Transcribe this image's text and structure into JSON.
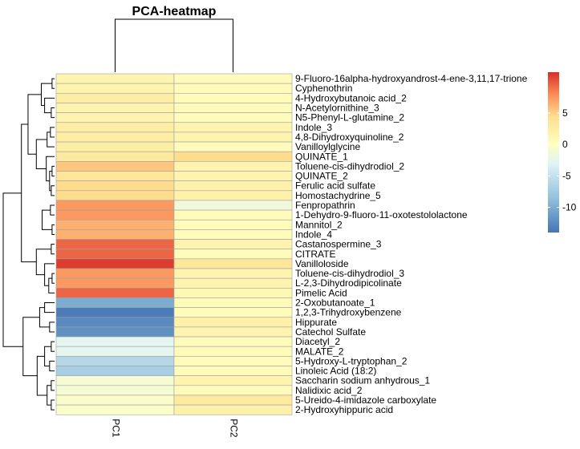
{
  "chart_data": {
    "type": "heatmap",
    "title": "PCA-heatmap",
    "columns": [
      "PC1",
      "PC2"
    ],
    "rows": [
      "9-Fluoro-16alpha-hydroxyandrost-4-ene-3,11,17-trione",
      "Cyphenothrin",
      "4-Hydroxybutanoic acid_2",
      "N-Acetylornithine_3",
      "N5-Phenyl-L-glutamine_2",
      "Indole_3",
      "4,8-Dihydroxyquinoline_2",
      "Vanilloylglycine",
      "QUINATE_1",
      "Toluene-cis-dihydrodiol_2",
      "QUINATE_2",
      "Ferulic acid sulfate",
      "Homostachydrine_5",
      "Fenpropathrin",
      "1-Dehydro-9-fluoro-11-oxotestololactone",
      "Mannitol_2",
      "Indole_4",
      "Castanospermine_3",
      "CITRATE",
      "Vanilloloside",
      "Toluene-cis-dihydrodiol_3",
      "L-2,3-Dihydrodipicolinate",
      "Pimelic Acid",
      "2-Oxobutanoate_1",
      "1,2,3-Trihydroxybenzene",
      "Hippurate",
      "Catechol Sulfate",
      "Diacetyl_2",
      "MALATE_2",
      "5-Hydroxy-L-tryptophan_2",
      "Linoleic Acid (18:2)",
      "Saccharin sodium anhydrous_1",
      "Nalidixic acid_2",
      "5-Ureido-4-imidazole carboxylate",
      "2-Hydroxyhippuric acid"
    ],
    "values": [
      [
        1.5,
        0.5
      ],
      [
        1.5,
        0.5
      ],
      [
        2.5,
        0.5
      ],
      [
        1.5,
        0.5
      ],
      [
        1.5,
        0.5
      ],
      [
        2.5,
        1.5
      ],
      [
        2.5,
        1.5
      ],
      [
        2.5,
        0.5
      ],
      [
        3.0,
        4.5
      ],
      [
        5.5,
        1.5
      ],
      [
        3.5,
        1.5
      ],
      [
        4.5,
        2.0
      ],
      [
        4.5,
        2.0
      ],
      [
        7.5,
        -1.5
      ],
      [
        7.5,
        0.5
      ],
      [
        6.5,
        0.5
      ],
      [
        6.5,
        0.5
      ],
      [
        9.5,
        1.5
      ],
      [
        9.5,
        0.5
      ],
      [
        11.0,
        3.5
      ],
      [
        7.5,
        1.5
      ],
      [
        7.5,
        1.5
      ],
      [
        9.5,
        1.0
      ],
      [
        -10.0,
        0.5
      ],
      [
        -13.5,
        0.5
      ],
      [
        -12.5,
        2.0
      ],
      [
        -12.0,
        1.5
      ],
      [
        -2.5,
        0.5
      ],
      [
        -2.5,
        0.5
      ],
      [
        -6.0,
        0.5
      ],
      [
        -7.0,
        0.5
      ],
      [
        -1.0,
        1.5
      ],
      [
        -1.0,
        0.5
      ],
      [
        -0.5,
        3.0
      ],
      [
        -0.5,
        2.0
      ]
    ],
    "color_scale": {
      "ticks": [
        5,
        0,
        -5,
        -10
      ],
      "range": [
        -14,
        11.5
      ],
      "low_color": "#4575b4",
      "mid_color": "#ffffbf",
      "high_color": "#d73027"
    },
    "row_dendrogram": [
      [
        0,
        1,
        0.15
      ],
      [
        3,
        4,
        0.2
      ],
      [
        2,
        -2,
        0.6
      ],
      [
        -1,
        -3,
        0.8
      ],
      [
        5,
        6,
        0.25
      ],
      [
        -5,
        7,
        0.45
      ],
      [
        9,
        10,
        0.15
      ],
      [
        11,
        12,
        0.2
      ],
      [
        -7,
        -8,
        0.3
      ],
      [
        8,
        -9,
        0.5
      ],
      [
        -6,
        -10,
        1.1
      ],
      [
        -4,
        -11,
        1.6
      ],
      [
        13,
        14,
        0.25
      ],
      [
        15,
        16,
        0.15
      ],
      [
        -13,
        -14,
        0.75
      ],
      [
        17,
        18,
        0.2
      ],
      [
        20,
        21,
        0.15
      ],
      [
        -17,
        22,
        0.35
      ],
      [
        19,
        -18,
        0.6
      ],
      [
        -16,
        -19,
        1.1
      ],
      [
        -12,
        -20,
        2.0
      ],
      [
        23,
        24,
        0.6
      ],
      [
        25,
        26,
        0.3
      ],
      [
        -22,
        -23,
        0.9
      ],
      [
        27,
        28,
        0.2
      ],
      [
        29,
        30,
        0.3
      ],
      [
        -25,
        -26,
        0.6
      ],
      [
        31,
        32,
        0.2
      ],
      [
        33,
        34,
        0.2
      ],
      [
        -28,
        -29,
        0.45
      ],
      [
        -27,
        -30,
        1.05
      ],
      [
        -24,
        -31,
        1.9
      ],
      [
        -21,
        -32,
        3.1
      ]
    ],
    "col_dendrogram": [
      [
        0,
        1,
        1
      ]
    ]
  }
}
